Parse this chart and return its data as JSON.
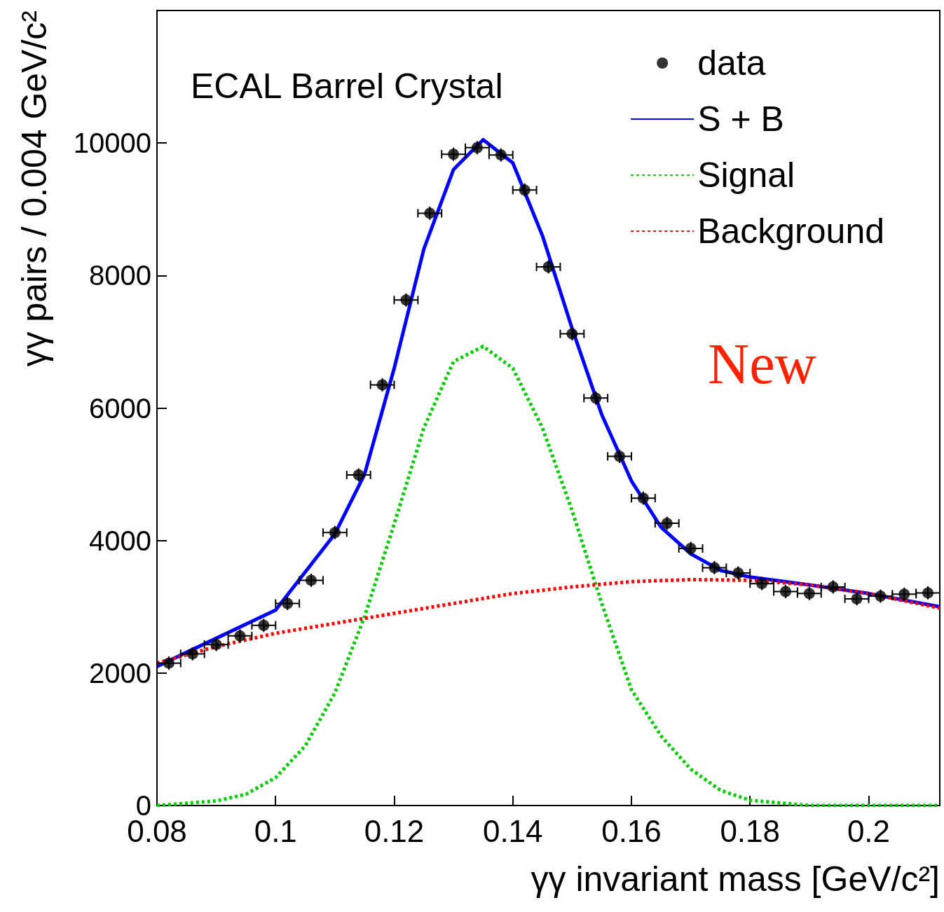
{
  "chart_data": {
    "type": "scatter",
    "xlabel": "γγ invariant mass [GeV/c²]",
    "ylabel": "γγ pairs / 0.004 GeV/c²",
    "annotations": [
      "ECAL Barrel Crystal",
      "New"
    ],
    "xlim": [
      0.08,
      0.212
    ],
    "ylim": [
      0,
      12000
    ],
    "xticks": [
      0.08,
      0.1,
      0.12,
      0.14,
      0.16,
      0.18,
      0.2
    ],
    "yticks": [
      0,
      2000,
      4000,
      6000,
      8000,
      10000
    ],
    "grid": false,
    "legend": "top right",
    "x": [
      0.082,
      0.086,
      0.09,
      0.094,
      0.098,
      0.102,
      0.106,
      0.11,
      0.114,
      0.118,
      0.122,
      0.126,
      0.13,
      0.134,
      0.138,
      0.142,
      0.146,
      0.15,
      0.154,
      0.158,
      0.162,
      0.166,
      0.17,
      0.174,
      0.178,
      0.182,
      0.186,
      0.19,
      0.194,
      0.198,
      0.202,
      0.206,
      0.21
    ],
    "series": [
      {
        "name": "data",
        "color": "#000000",
        "marker": "circle",
        "values": [
          2150,
          2290,
          2430,
          2560,
          2720,
          3050,
          3400,
          4120,
          4990,
          6350,
          7630,
          8940,
          9830,
          9930,
          9820,
          9290,
          8130,
          7120,
          6150,
          5270,
          4640,
          4260,
          3880,
          3590,
          3510,
          3350,
          3230,
          3200,
          3300,
          3120,
          3160,
          3190,
          3210
        ],
        "errors": [
          100,
          100,
          100,
          100,
          100,
          100,
          100,
          100,
          100,
          100,
          100,
          100,
          100,
          100,
          100,
          100,
          100,
          100,
          100,
          100,
          100,
          100,
          100,
          100,
          100,
          100,
          100,
          100,
          100,
          100,
          100,
          100,
          100
        ],
        "xerrors": [
          0.002,
          0.002,
          0.002,
          0.002,
          0.002,
          0.002,
          0.002,
          0.002,
          0.002,
          0.002,
          0.002,
          0.002,
          0.002,
          0.002,
          0.002,
          0.002,
          0.002,
          0.002,
          0.002,
          0.002,
          0.002,
          0.002,
          0.002,
          0.002,
          0.002,
          0.002,
          0.002,
          0.002,
          0.002,
          0.002,
          0.002,
          0.002,
          0.002
        ]
      },
      {
        "name": "S + B",
        "type": "line",
        "color": "#0000ff",
        "line_style": "solid",
        "marker": "none",
        "x": [
          0.08,
          0.1,
          0.11,
          0.115,
          0.12,
          0.125,
          0.13,
          0.135,
          0.14,
          0.145,
          0.15,
          0.155,
          0.16,
          0.165,
          0.17,
          0.175,
          0.18,
          0.19,
          0.2,
          0.212
        ],
        "values": [
          2100,
          2950,
          4100,
          5000,
          6600,
          8400,
          9600,
          10050,
          9700,
          8600,
          7200,
          5900,
          4900,
          4200,
          3800,
          3550,
          3450,
          3330,
          3200,
          3000
        ]
      },
      {
        "name": "Signal",
        "type": "line",
        "color": "#00cc00",
        "line_style": "dotted",
        "marker": "none",
        "x": [
          0.08,
          0.09,
          0.095,
          0.1,
          0.105,
          0.11,
          0.115,
          0.12,
          0.125,
          0.13,
          0.135,
          0.14,
          0.145,
          0.15,
          0.155,
          0.16,
          0.165,
          0.17,
          0.175,
          0.18,
          0.19,
          0.212
        ],
        "values": [
          0,
          70,
          170,
          420,
          900,
          1700,
          2850,
          4250,
          5700,
          6700,
          6930,
          6600,
          5700,
          4450,
          3050,
          1750,
          1050,
          550,
          230,
          80,
          0,
          0
        ]
      },
      {
        "name": "Background",
        "type": "line",
        "color": "#ff0000",
        "line_style": "dotted",
        "marker": "none",
        "x": [
          0.08,
          0.09,
          0.1,
          0.11,
          0.12,
          0.13,
          0.14,
          0.15,
          0.16,
          0.17,
          0.18,
          0.19,
          0.2,
          0.212
        ],
        "values": [
          2150,
          2400,
          2600,
          2750,
          2900,
          3050,
          3200,
          3300,
          3380,
          3410,
          3400,
          3330,
          3200,
          2980
        ]
      }
    ]
  }
}
